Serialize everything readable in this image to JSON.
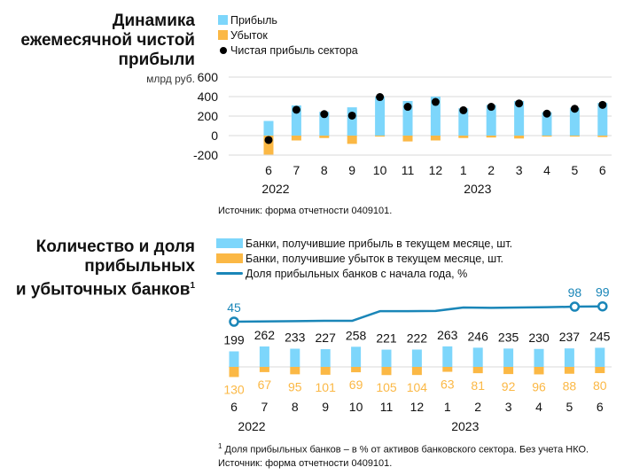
{
  "colors": {
    "profit": "#7dd6fb",
    "loss": "#fbb845",
    "net": "#000000",
    "line": "#1a86b8",
    "grid": "#d9d9d9"
  },
  "chart1": {
    "title_lines": [
      "Динамика",
      "ежемесячной чистой",
      "прибыли"
    ],
    "unit": "млрд руб.",
    "legend": {
      "profit": "Прибыль",
      "loss": "Убыток",
      "net": "Чистая прибыль сектора"
    },
    "source": "Источник: форма отчетности 0409101."
  },
  "chart2": {
    "title_lines": [
      "Количество и доля",
      "прибыльных",
      "и убыточных банков"
    ],
    "title_sup": "1",
    "legend": {
      "profit": "Банки, получившие прибыль в текущем месяце, шт.",
      "loss": "Банки, получившие убыток в текущем месяце, шт.",
      "share": "Доля прибыльных банков с начала года, %"
    },
    "footnote_sup": "1",
    "footnote": "Доля прибыльных банков – в % от активов банковского сектора. Без учета НКО.",
    "source": "Источник: форма отчетности 0409101."
  },
  "chart_data": [
    {
      "type": "bar",
      "title": "Динамика ежемесячной чистой прибыли",
      "ylabel": "млрд руб.",
      "categories": [
        "6",
        "7",
        "8",
        "9",
        "10",
        "11",
        "12",
        "1",
        "2",
        "3",
        "4",
        "5",
        "6"
      ],
      "year_labels": [
        {
          "label": "2022",
          "index": 0
        },
        {
          "label": "2023",
          "index": 7
        }
      ],
      "yticks": [
        600,
        400,
        200,
        0,
        -200
      ],
      "ylim": [
        -200,
        600
      ],
      "grid": true,
      "legend_position": "top",
      "series": [
        {
          "name": "Прибыль",
          "values": [
            150,
            310,
            245,
            290,
            400,
            355,
            400,
            280,
            315,
            355,
            240,
            285,
            335
          ]
        },
        {
          "name": "Убыток",
          "values": [
            -195,
            -50,
            -25,
            -85,
            -10,
            -60,
            -50,
            -25,
            -20,
            -30,
            -10,
            -10,
            -15
          ]
        },
        {
          "name": "Чистая прибыль сектора",
          "values": [
            -45,
            265,
            220,
            205,
            395,
            295,
            345,
            260,
            295,
            330,
            225,
            275,
            315
          ]
        }
      ]
    },
    {
      "type": "bar",
      "title": "Количество и доля прибыльных и убыточных банков",
      "categories": [
        "6",
        "7",
        "8",
        "9",
        "10",
        "11",
        "12",
        "1",
        "2",
        "3",
        "4",
        "5",
        "6"
      ],
      "year_labels": [
        {
          "label": "2022",
          "index": 0
        },
        {
          "label": "2023",
          "index": 7
        }
      ],
      "legend_position": "top",
      "series": [
        {
          "name": "Банки, получившие прибыль в текущем месяце, шт.",
          "values": [
            199,
            262,
            233,
            227,
            258,
            221,
            222,
            263,
            246,
            235,
            230,
            237,
            245
          ]
        },
        {
          "name": "Банки, получившие убыток в текущем месяце, шт.",
          "values": [
            130,
            67,
            95,
            101,
            69,
            105,
            104,
            63,
            81,
            92,
            96,
            88,
            80
          ]
        },
        {
          "name": "Доля прибыльных банков с начала года, %",
          "type": "line",
          "values": [
            45,
            47,
            48,
            48,
            82,
            82,
            83,
            95,
            94,
            95,
            96,
            98,
            99
          ],
          "labeled_points": [
            0,
            11,
            12
          ]
        }
      ]
    }
  ]
}
